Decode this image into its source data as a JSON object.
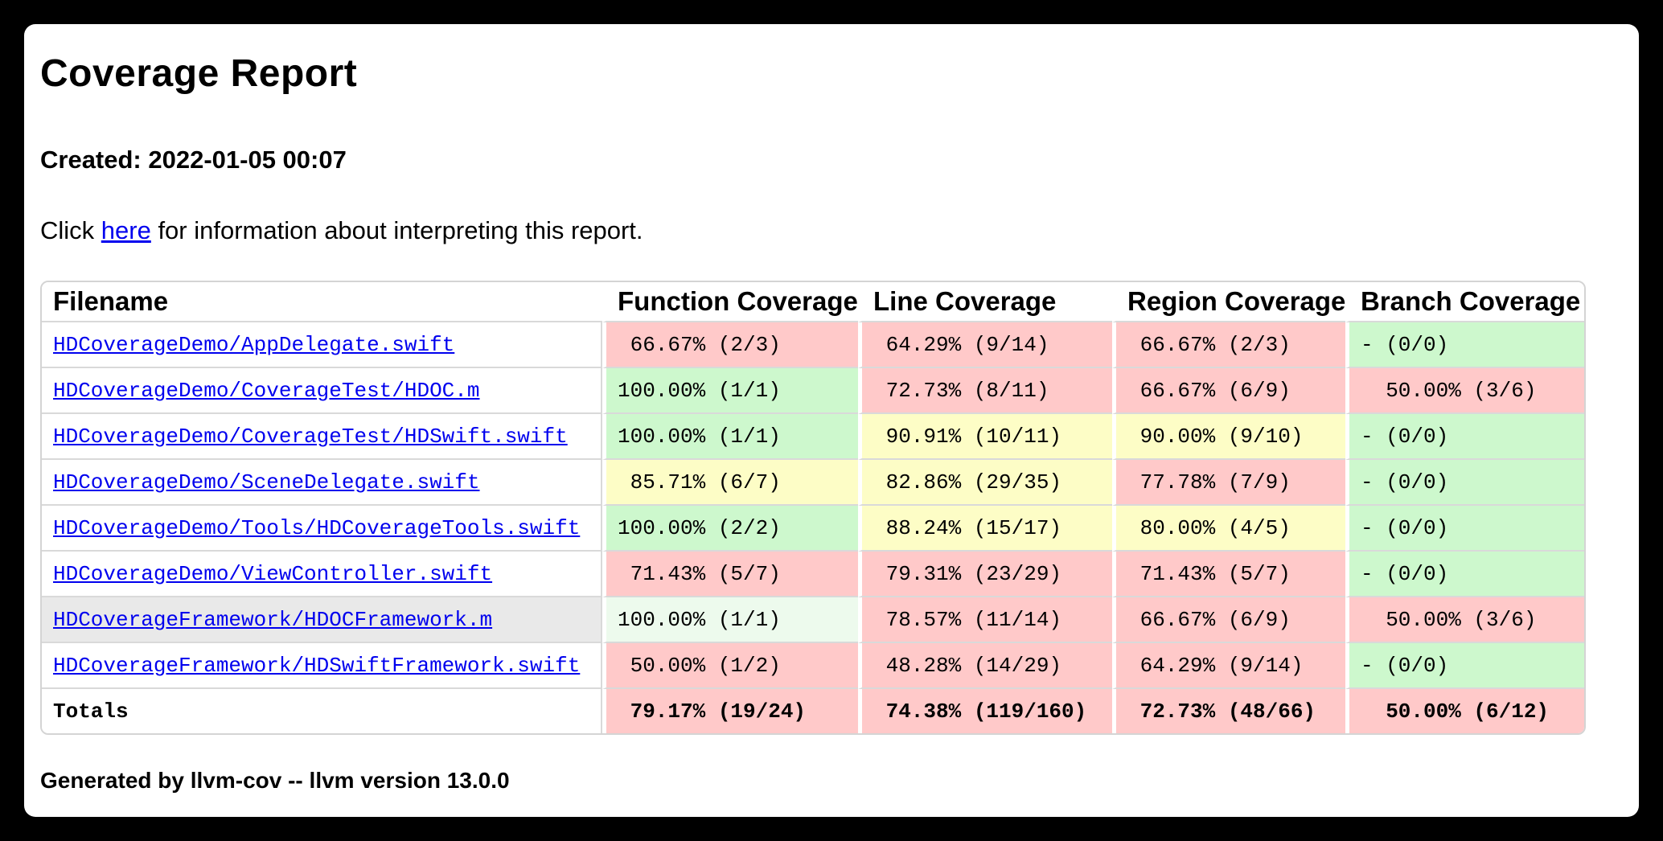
{
  "header": {
    "title": "Coverage Report",
    "created": "Created: 2022-01-05 00:07",
    "info": {
      "prefix": "Click ",
      "link_text": "here",
      "suffix": " for information about interpreting this report."
    }
  },
  "table": {
    "columns": [
      "Filename",
      "Function Coverage",
      "Line Coverage",
      "Region Coverage",
      "Branch Coverage"
    ],
    "rows": [
      {
        "filename": "HDCoverageDemo/AppDelegate.swift",
        "is_link": true,
        "hover": false,
        "bold": false,
        "cells": [
          {
            "text": " 66.67% (2/3)",
            "status": "red"
          },
          {
            "text": " 64.29% (9/14)",
            "status": "red"
          },
          {
            "text": " 66.67% (2/3)",
            "status": "red"
          },
          {
            "text": "- (0/0)",
            "status": "green"
          }
        ]
      },
      {
        "filename": "HDCoverageDemo/CoverageTest/HDOC.m",
        "is_link": true,
        "hover": false,
        "bold": false,
        "cells": [
          {
            "text": "100.00% (1/1)",
            "status": "green"
          },
          {
            "text": " 72.73% (8/11)",
            "status": "red"
          },
          {
            "text": " 66.67% (6/9)",
            "status": "red"
          },
          {
            "text": "  50.00% (3/6)",
            "status": "red"
          }
        ]
      },
      {
        "filename": "HDCoverageDemo/CoverageTest/HDSwift.swift",
        "is_link": true,
        "hover": false,
        "bold": false,
        "cells": [
          {
            "text": "100.00% (1/1)",
            "status": "green"
          },
          {
            "text": " 90.91% (10/11)",
            "status": "yellow"
          },
          {
            "text": " 90.00% (9/10)",
            "status": "yellow"
          },
          {
            "text": "- (0/0)",
            "status": "green"
          }
        ]
      },
      {
        "filename": "HDCoverageDemo/SceneDelegate.swift",
        "is_link": true,
        "hover": false,
        "bold": false,
        "cells": [
          {
            "text": " 85.71% (6/7)",
            "status": "yellow"
          },
          {
            "text": " 82.86% (29/35)",
            "status": "yellow"
          },
          {
            "text": " 77.78% (7/9)",
            "status": "red"
          },
          {
            "text": "- (0/0)",
            "status": "green"
          }
        ]
      },
      {
        "filename": "HDCoverageDemo/Tools/HDCoverageTools.swift",
        "is_link": true,
        "hover": false,
        "bold": false,
        "cells": [
          {
            "text": "100.00% (2/2)",
            "status": "green"
          },
          {
            "text": " 88.24% (15/17)",
            "status": "yellow"
          },
          {
            "text": " 80.00% (4/5)",
            "status": "yellow"
          },
          {
            "text": "- (0/0)",
            "status": "green"
          }
        ]
      },
      {
        "filename": "HDCoverageDemo/ViewController.swift",
        "is_link": true,
        "hover": false,
        "bold": false,
        "cells": [
          {
            "text": " 71.43% (5/7)",
            "status": "red"
          },
          {
            "text": " 79.31% (23/29)",
            "status": "red"
          },
          {
            "text": " 71.43% (5/7)",
            "status": "red"
          },
          {
            "text": "- (0/0)",
            "status": "green"
          }
        ]
      },
      {
        "filename": "HDCoverageFramework/HDOCFramework.m",
        "is_link": true,
        "hover": true,
        "bold": false,
        "cells": [
          {
            "text": "100.00% (1/1)",
            "status": "green-hover"
          },
          {
            "text": " 78.57% (11/14)",
            "status": "red"
          },
          {
            "text": " 66.67% (6/9)",
            "status": "red"
          },
          {
            "text": "  50.00% (3/6)",
            "status": "red"
          }
        ]
      },
      {
        "filename": "HDCoverageFramework/HDSwiftFramework.swift",
        "is_link": true,
        "hover": false,
        "bold": false,
        "cells": [
          {
            "text": " 50.00% (1/2)",
            "status": "red"
          },
          {
            "text": " 48.28% (14/29)",
            "status": "red"
          },
          {
            "text": " 64.29% (9/14)",
            "status": "red"
          },
          {
            "text": "- (0/0)",
            "status": "green"
          }
        ]
      },
      {
        "filename": "Totals",
        "is_link": false,
        "hover": false,
        "bold": true,
        "cells": [
          {
            "text": " 79.17% (19/24)",
            "status": "red"
          },
          {
            "text": " 74.38% (119/160)",
            "status": "red"
          },
          {
            "text": " 72.73% (48/66)",
            "status": "red"
          },
          {
            "text": "  50.00% (6/12)",
            "status": "red"
          }
        ]
      }
    ]
  },
  "footer": {
    "text": "Generated by llvm-cov -- llvm version 13.0.0"
  },
  "colors": {
    "red": "#ffc9c9",
    "green": "#cdf8cd",
    "yellow": "#fdfdc6",
    "green_hover": "#edfaed",
    "row_hover": "#e9e9e9",
    "link": "#0000ee",
    "border": "#d9d9d9"
  }
}
